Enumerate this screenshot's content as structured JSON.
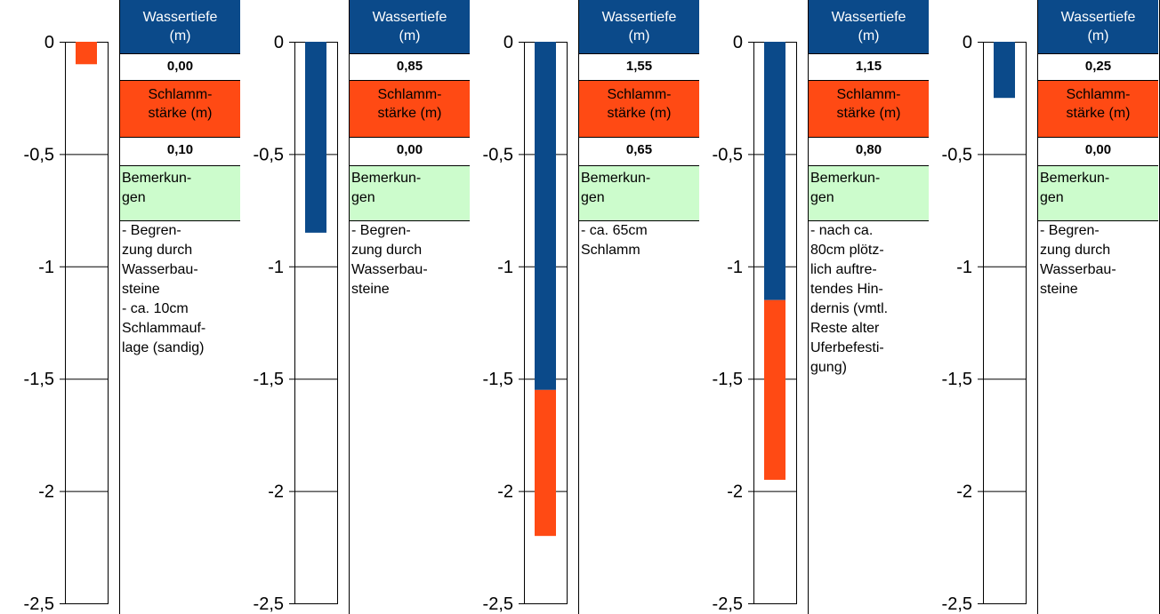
{
  "colors": {
    "water": "#0b4a8a",
    "mud": "#ff4a14",
    "remarks_bg": "#ccfccc",
    "header_bg": "#0b4a8a"
  },
  "labels": {
    "water_header": "Wassertiefe\n(m)",
    "mud_header": "Schlamm-\nstärke (m)",
    "remarks_header": "Bemerkun-\ngen"
  },
  "chart_data": [
    {
      "type": "bar",
      "ylim": [
        -2.5,
        0
      ],
      "yticks": [
        "0",
        "-0,5",
        "-1",
        "-1,5",
        "-2",
        "-2,5"
      ],
      "water_depth": 0.0,
      "mud_thickness": 0.1,
      "water_depth_label": "0,00",
      "mud_thickness_label": "0,10",
      "remarks": "- Begren-\nzung durch\nWasserbau-\nsteine\n- ca. 10cm\nSchlammauf-\nlage (sandig)"
    },
    {
      "type": "bar",
      "ylim": [
        -2.5,
        0
      ],
      "yticks": [
        "0",
        "-0,5",
        "-1",
        "-1,5",
        "-2",
        "-2,5"
      ],
      "water_depth": 0.85,
      "mud_thickness": 0.0,
      "water_depth_label": "0,85",
      "mud_thickness_label": "0,00",
      "remarks": "- Begren-\nzung durch\nWasserbau-\nsteine"
    },
    {
      "type": "bar",
      "ylim": [
        -2.5,
        0
      ],
      "yticks": [
        "0",
        "-0,5",
        "-1",
        "-1,5",
        "-2",
        "-2,5"
      ],
      "water_depth": 1.55,
      "mud_thickness": 0.65,
      "water_depth_label": "1,55",
      "mud_thickness_label": "0,65",
      "remarks": "- ca. 65cm\nSchlamm"
    },
    {
      "type": "bar",
      "ylim": [
        -2.5,
        0
      ],
      "yticks": [
        "0",
        "-0,5",
        "-1",
        "-1,5",
        "-2",
        "-2,5"
      ],
      "water_depth": 1.15,
      "mud_thickness": 0.8,
      "water_depth_label": "1,15",
      "mud_thickness_label": "0,80",
      "remarks": "- nach ca.\n80cm plötz-\nlich auftre-\ntendes Hin-\ndernis (vmtl.\nReste alter\nUferbefesti-\ngung)"
    },
    {
      "type": "bar",
      "ylim": [
        -2.5,
        0
      ],
      "yticks": [
        "0",
        "-0,5",
        "-1",
        "-1,5",
        "-2",
        "-2,5"
      ],
      "water_depth": 0.25,
      "mud_thickness": 0.0,
      "water_depth_label": "0,25",
      "mud_thickness_label": "0,00",
      "remarks": "- Begren-\nzung durch\nWasserbau-\nsteine"
    }
  ]
}
